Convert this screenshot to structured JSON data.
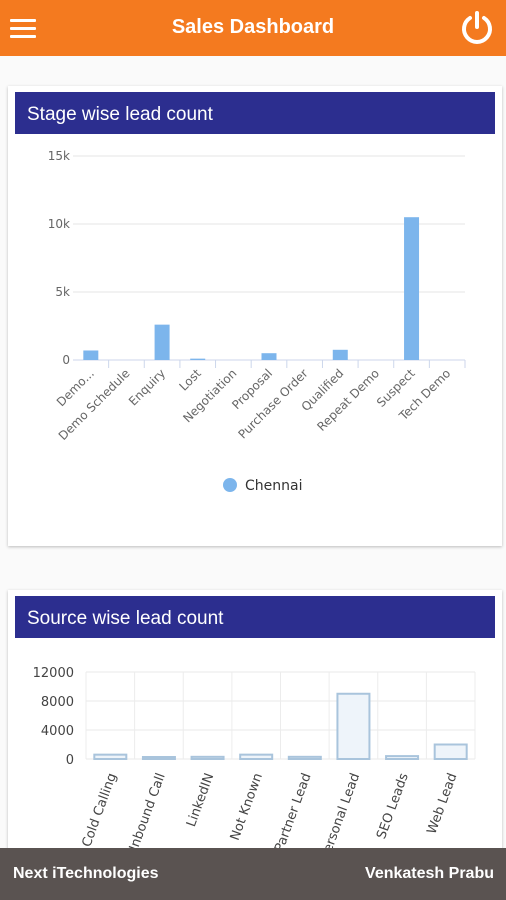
{
  "app": {
    "title": "Sales Dashboard",
    "accent": "#f47a1f",
    "header_color": "#2c2e8f"
  },
  "footer": {
    "company": "Next iTechnologies",
    "user": "Venkatesh Prabu"
  },
  "chart_data": [
    {
      "type": "bar",
      "title": "Stage wise lead count",
      "categories": [
        "Demo...",
        "Demo Schedule",
        "Enquiry",
        "Lost",
        "Negotiation",
        "Proposal",
        "Purchase Order",
        "Qualified",
        "Repeat Demo",
        "Suspect",
        "Tech Demo"
      ],
      "series": [
        {
          "name": "Chennai",
          "color": "#7cb5ec",
          "values": [
            700,
            0,
            2600,
            100,
            0,
            500,
            0,
            750,
            0,
            10500,
            0
          ]
        }
      ],
      "yticks": [
        "0",
        "5k",
        "10k",
        "15k"
      ],
      "ylim": [
        0,
        15000
      ],
      "grid": true,
      "legend": "bottom-center"
    },
    {
      "type": "bar",
      "title": "Source wise lead count",
      "categories": [
        "Cold Calling",
        "Inbound Call",
        "LinkedIN",
        "Not Known",
        "Partner Lead",
        "Personal Lead",
        "SEO Leads",
        "Web Lead"
      ],
      "series": [
        {
          "color": "#a9c4dc",
          "values": [
            600,
            100,
            300,
            600,
            300,
            9000,
            400,
            2000
          ]
        }
      ],
      "yticks": [
        "0",
        "4000",
        "8000",
        "12000"
      ],
      "ylim": [
        0,
        12000
      ],
      "grid": true,
      "legend": "none"
    }
  ]
}
